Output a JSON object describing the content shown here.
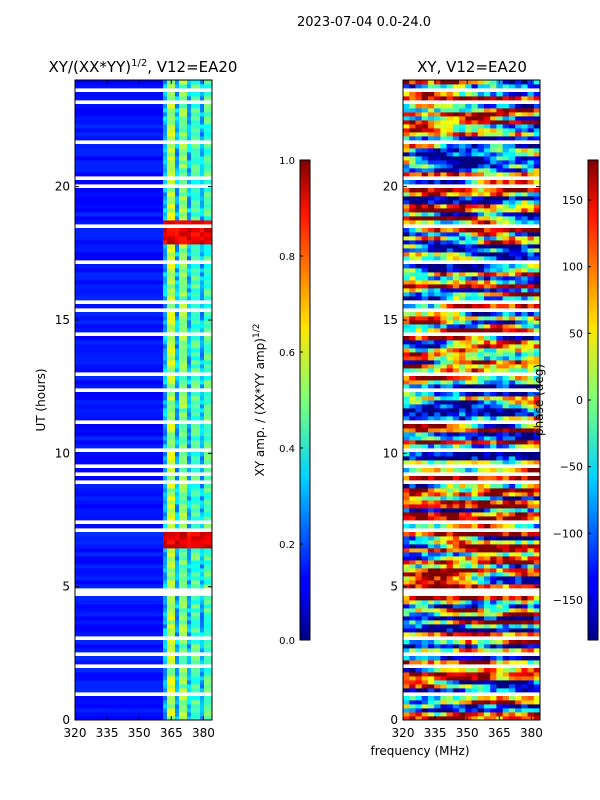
{
  "figure": {
    "suptitle": "2023-07-04 0.0-24.0",
    "xlabel": "frequency (MHz)"
  },
  "chart_data": [
    {
      "type": "heatmap",
      "title_main": "XY/(XX*YY)",
      "title_sup": "1/2",
      "title_tail": ", V12=EA20",
      "ylabel": "UT (hours)",
      "xlim": [
        320,
        384
      ],
      "ylim": [
        0,
        24
      ],
      "x_ticks": [
        "320",
        "335",
        "350",
        "365",
        "380"
      ],
      "x_tick_values": [
        320,
        335,
        350,
        365,
        380
      ],
      "y_ticks": [
        "0",
        "5",
        "10",
        "15",
        "20"
      ],
      "y_tick_values": [
        0,
        5,
        10,
        15,
        20
      ],
      "colorbar": {
        "label_main": "XY amp. / (XX*YY amp)",
        "label_sup": "1/2",
        "range": [
          0,
          1
        ],
        "ticks": [
          "0.0",
          "0.2",
          "0.4",
          "0.6",
          "0.8",
          "1.0"
        ],
        "tick_values": [
          0,
          0.2,
          0.4,
          0.6,
          0.8,
          1.0
        ]
      }
    },
    {
      "type": "heatmap",
      "title": "XY, V12=EA20",
      "xlim": [
        320,
        384
      ],
      "ylim": [
        0,
        24
      ],
      "x_ticks": [
        "320",
        "335",
        "350",
        "365",
        "380"
      ],
      "x_tick_values": [
        320,
        335,
        350,
        365,
        380
      ],
      "y_ticks": [
        "0",
        "5",
        "10",
        "15",
        "20"
      ],
      "y_tick_values": [
        0,
        5,
        10,
        15,
        20
      ],
      "colorbar": {
        "label": "phase (deg)",
        "range": [
          -180,
          180
        ],
        "ticks": [
          "−150",
          "−100",
          "−50",
          "0",
          "50",
          "100",
          "150"
        ],
        "tick_values": [
          -150,
          -100,
          -50,
          0,
          50,
          100,
          150
        ]
      }
    }
  ]
}
